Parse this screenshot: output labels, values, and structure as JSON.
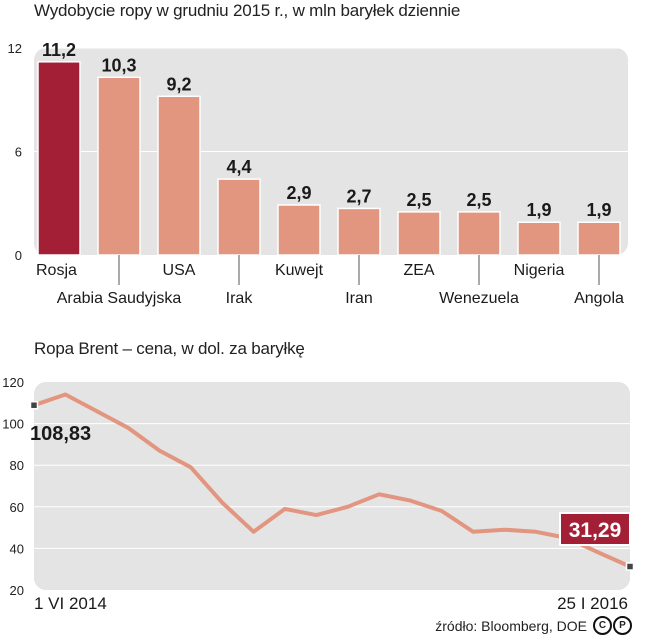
{
  "chart_data": [
    {
      "type": "bar",
      "title": "Wydobycie ropy w grudniu 2015 r., w mln baryłek dziennie",
      "categories": [
        "Rosja",
        "Arabia Saudyjska",
        "USA",
        "Irak",
        "Kuwejt",
        "Iran",
        "ZEA",
        "Wenezuela",
        "Nigeria",
        "Angola"
      ],
      "values": [
        11.2,
        10.3,
        9.2,
        4.4,
        2.9,
        2.7,
        2.5,
        2.5,
        1.9,
        1.9
      ],
      "value_labels": [
        "11,2",
        "10,3",
        "9,2",
        "4,4",
        "2,9",
        "2,7",
        "2,5",
        "2,5",
        "1,9",
        "1,9"
      ],
      "yticks": [
        0,
        6,
        12
      ],
      "ylim": [
        0,
        12
      ],
      "highlight_color": "#a31f35",
      "bar_color": "#e2957f"
    },
    {
      "type": "line",
      "title": "Ropa Brent – cena, w dol. za baryłkę",
      "yticks": [
        20,
        40,
        60,
        80,
        100,
        120
      ],
      "ylim": [
        20,
        120
      ],
      "start_label": "1 VI 2014",
      "end_label": "25 I 2016",
      "start_value_label": "108,83",
      "end_value_label": "31,29",
      "x": [
        "2014-06",
        "2014-07",
        "2014-08",
        "2014-09",
        "2014-10",
        "2014-11",
        "2014-12",
        "2015-01",
        "2015-02",
        "2015-03",
        "2015-04",
        "2015-05",
        "2015-06",
        "2015-07",
        "2015-08",
        "2015-09",
        "2015-10",
        "2015-11",
        "2015-12",
        "2016-01"
      ],
      "y": [
        108.83,
        114,
        106,
        98,
        87,
        79,
        62,
        48,
        59,
        56,
        60,
        66,
        63,
        58,
        48,
        49,
        48,
        45,
        38,
        31.29
      ],
      "line_color": "#e2957f",
      "end_label_color": "#a31f35"
    }
  ],
  "source_text": "źródło: Bloomberg, DOE",
  "logo_letters": [
    "C",
    "P"
  ]
}
